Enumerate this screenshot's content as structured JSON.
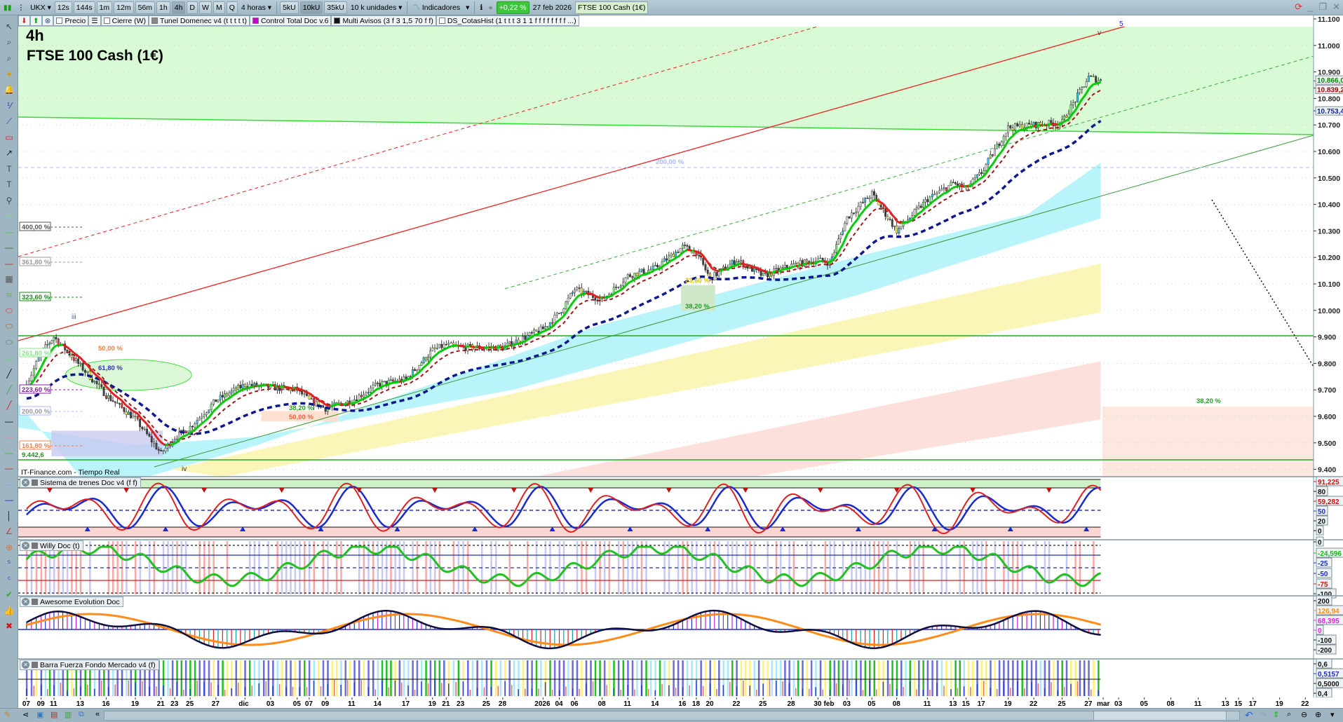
{
  "toolbar": {
    "symbol": "UKX",
    "timeframes": [
      "12s",
      "144s",
      "1m",
      "12m",
      "56m",
      "1h",
      "4h",
      "D",
      "W",
      "M",
      "Q"
    ],
    "active_timeframe": "4h",
    "period_select": "4 horas",
    "unit_buttons": [
      "5kU",
      "10kU",
      "35kU"
    ],
    "active_unit": "10kU",
    "units_select": "10 k unidades",
    "indicators_label": "Indicadores",
    "change_pct": "+0,22 %",
    "date": "27 feb 2026",
    "instrument": "FTSE 100 Cash (1€)"
  },
  "indicator_bar": [
    "Precio",
    "Cierre (W)",
    "Tunel Domenec v4 (t t t t t)",
    "Control Total Doc v.6",
    "Multi Avisos (3 f 3 1,5 70 f f)",
    "DS_CotasHist (1 t t t 3 1 1 f f f f f f f f ...)"
  ],
  "chart": {
    "timeframe_label": "4h",
    "title": "FTSE 100 Cash (1€)",
    "source": "IT-Finance.com - Tiempo Real",
    "colors": {
      "up_green": "#00cc00",
      "channel_red": "#ee2222",
      "ma_blue": "#101890",
      "bg_green": "#d8fbd6",
      "cyan_band": "#b8f4fa",
      "yellow_band": "#fbf6b8",
      "pink_band": "#fde0dc"
    },
    "price_axis": [
      "11.100",
      "11.000",
      "10.900",
      "10.800",
      "10.700",
      "10.600",
      "10.500",
      "10.400",
      "10.300",
      "10.200",
      "10.100",
      "10.000",
      "9.900",
      "9.800",
      "9.700",
      "9.600",
      "9.500",
      "9.400"
    ],
    "price_markers": [
      {
        "text": "10.866,0",
        "color": "#008800"
      },
      {
        "text": "10.839,2",
        "color": "#aa0000"
      },
      {
        "text": "10.753,4",
        "color": "#1020aa"
      }
    ],
    "fib_labels": [
      "400,00 %",
      "361,80 %",
      "323,60 %",
      "261,80 %",
      "223,60 %",
      "200,00 %",
      "161,80 %"
    ],
    "low_label": "9.442,6",
    "retracements": [
      "50,00 %",
      "61,80 %",
      "38,20 %",
      "50,00 %",
      "23,60 %",
      "38,20 %",
      "38,20 %",
      "200,00 %"
    ],
    "waves": [
      "iii",
      "iv",
      "v",
      "5"
    ],
    "date_ticks": [
      "07",
      "09",
      "11",
      "13",
      "16",
      "19",
      "21",
      "23",
      "25",
      "27",
      "dic",
      "03",
      "05",
      "07",
      "09",
      "11",
      "14",
      "17",
      "19",
      "21",
      "23",
      "25",
      "28",
      "2026",
      "04",
      "06",
      "08",
      "11",
      "14",
      "16",
      "18",
      "20",
      "22",
      "25",
      "28",
      "30",
      "feb",
      "03",
      "05",
      "08",
      "11",
      "13",
      "15",
      "17",
      "19",
      "22",
      "25",
      "27",
      "mar",
      "03",
      "05",
      "08",
      "11",
      "13",
      "15",
      "17",
      "19",
      "22"
    ],
    "closes_at_ticks": [
      9720,
      9840,
      9900,
      9790,
      9680,
      9590,
      9460,
      9520,
      9560,
      9660,
      9720,
      9710,
      9700,
      9660,
      9630,
      9660,
      9720,
      9740,
      9850,
      9870,
      9860,
      9860,
      9860,
      9930,
      9990,
      10080,
      10040,
      10130,
      10160,
      10240,
      10220,
      10120,
      10190,
      10130,
      10170,
      10190,
      10180,
      10350,
      10440,
      10300,
      10420,
      10480,
      10460,
      10520,
      10690,
      10700,
      10710,
      10880,
      10866
    ]
  },
  "panels": [
    {
      "title": "Sistema de trenes Doc v4 (f f)",
      "axis": [
        "91,225",
        "80",
        "59,282",
        "50",
        "20",
        "0"
      ]
    },
    {
      "title": "Willy Doc (t)",
      "axis": [
        "0",
        "-24,596",
        "-25",
        "-50",
        "-75",
        "-100"
      ]
    },
    {
      "title": "Awesome Evolution Doc",
      "axis": [
        "200",
        "126,94",
        "68,395",
        "0",
        "-100",
        "-200"
      ]
    },
    {
      "title": "Barra Fuerza Fondo Mercado v4 (f)",
      "axis": [
        "0,6",
        "0,5157",
        "0,5000",
        "0,4"
      ]
    }
  ],
  "left_tools": [
    "cursor-icon",
    "zoom-icon",
    "zoom-area-icon",
    "alarm-icon",
    "bell-icon",
    "fibonacci-icon",
    "trendline-icon",
    "rectangle-icon",
    "arrow-icon",
    "text-icon",
    "text-t-icon",
    "line-node-icon",
    "line-green-light-icon",
    "line-green-icon",
    "line-dark-green-icon",
    "line-red-icon",
    "ruler-icon",
    "pattern-icon",
    "ellipse-red-icon",
    "ellipse-brown-icon",
    "ellipse-green-icon",
    "ellipse-light-icon",
    "line-black-icon",
    "line-green-diag-icon",
    "line-red-diag-icon",
    "hline-black-icon",
    "hline-salmon-icon",
    "hline-green-icon",
    "hline-red-icon",
    "hline-lightblue-icon",
    "hline-blue-icon",
    "vline-icon",
    "angle-icon",
    "circle-icon",
    "elliott-numbers-icon",
    "elliott-letters-icon",
    "check-icon",
    "thumbs-up-icon",
    "delete-icon"
  ]
}
